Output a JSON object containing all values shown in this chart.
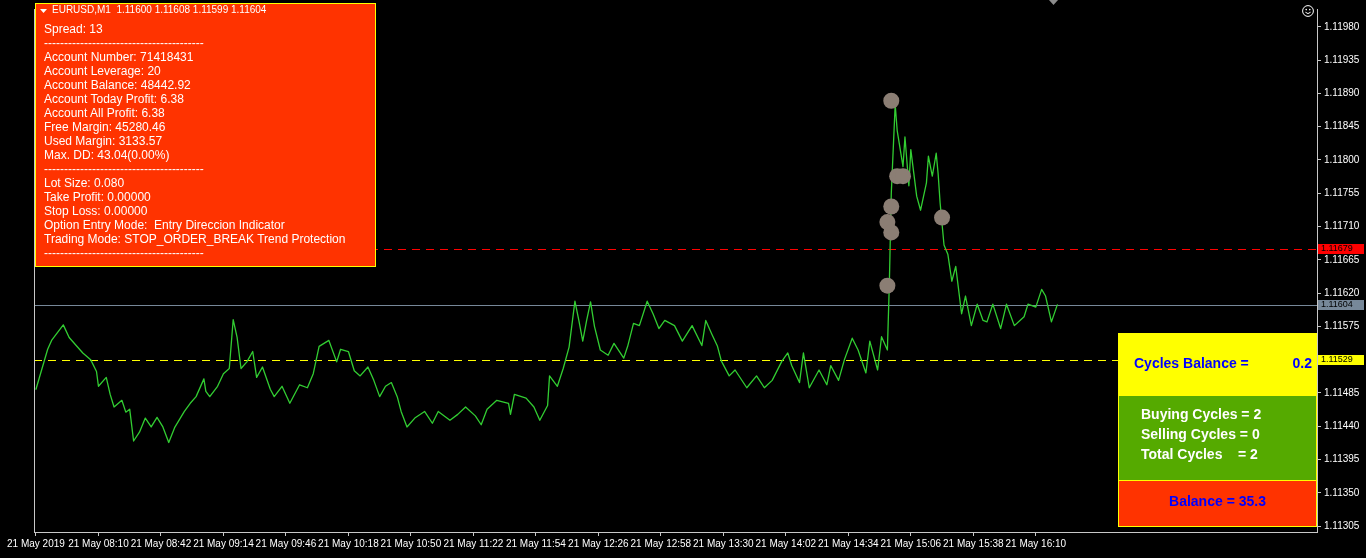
{
  "chart_data": {
    "type": "line",
    "title": "EURUSD,M1  1.11600 1.11608 1.11599 1.11604",
    "marker": "none",
    "x": [
      "2019-05-21T07:38",
      "2019-05-21T07:44",
      "2019-05-21T07:46",
      "2019-05-21T07:52",
      "2019-05-21T07:55",
      "2019-05-21T08:02",
      "2019-05-21T08:06",
      "2019-05-21T08:09",
      "2019-05-21T08:10",
      "2019-05-21T08:14",
      "2019-05-21T08:16",
      "2019-05-21T08:18",
      "2019-05-21T08:22",
      "2019-05-21T08:24",
      "2019-05-21T08:26",
      "2019-05-21T08:28",
      "2019-05-21T08:31",
      "2019-05-21T08:34",
      "2019-05-21T08:37",
      "2019-05-21T08:40",
      "2019-05-21T08:43",
      "2019-05-21T08:46",
      "2019-05-21T08:49",
      "2019-05-21T08:54",
      "2019-05-21T08:57",
      "2019-05-21T09:00",
      "2019-05-21T09:04",
      "2019-05-21T09:05",
      "2019-05-21T09:07",
      "2019-05-21T09:11",
      "2019-05-21T09:14",
      "2019-05-21T09:17",
      "2019-05-21T09:19",
      "2019-05-21T09:21",
      "2019-05-21T09:23",
      "2019-05-21T09:26",
      "2019-05-21T09:29",
      "2019-05-21T09:31",
      "2019-05-21T09:34",
      "2019-05-21T09:38",
      "2019-05-21T09:40",
      "2019-05-21T09:44",
      "2019-05-21T09:48",
      "2019-05-21T09:53",
      "2019-05-21T09:57",
      "2019-05-21T10:00",
      "2019-05-21T10:03",
      "2019-05-21T10:08",
      "2019-05-21T10:12",
      "2019-05-21T10:14",
      "2019-05-21T10:18",
      "2019-05-21T10:21",
      "2019-05-21T10:24",
      "2019-05-21T10:28",
      "2019-05-21T10:31",
      "2019-05-21T10:34",
      "2019-05-21T10:37",
      "2019-05-21T10:40",
      "2019-05-21T10:43",
      "2019-05-21T10:45",
      "2019-05-21T10:48",
      "2019-05-21T10:52",
      "2019-05-21T10:57",
      "2019-05-21T11:01",
      "2019-05-21T11:04",
      "2019-05-21T11:10",
      "2019-05-21T11:14",
      "2019-05-21T11:18",
      "2019-05-21T11:23",
      "2019-05-21T11:26",
      "2019-05-21T11:29",
      "2019-05-21T11:34",
      "2019-05-21T11:40",
      "2019-05-21T11:41",
      "2019-05-21T11:43",
      "2019-05-21T11:49",
      "2019-05-21T11:53",
      "2019-05-21T11:56",
      "2019-05-21T12:00",
      "2019-05-21T12:01",
      "2019-05-21T12:05",
      "2019-05-21T12:08",
      "2019-05-21T12:11",
      "2019-05-21T12:14",
      "2019-05-21T12:16",
      "2019-05-21T12:18",
      "2019-05-21T12:20",
      "2019-05-21T12:22",
      "2019-05-21T12:24",
      "2019-05-21T12:27",
      "2019-05-21T12:31",
      "2019-05-21T12:34",
      "2019-05-21T12:39",
      "2019-05-21T12:41",
      "2019-05-21T12:44",
      "2019-05-21T12:47",
      "2019-05-21T12:51",
      "2019-05-21T12:54",
      "2019-05-21T12:57",
      "2019-05-21T13:00",
      "2019-05-21T13:05",
      "2019-05-21T13:09",
      "2019-05-21T13:14",
      "2019-05-21T13:19",
      "2019-05-21T13:21",
      "2019-05-21T13:24",
      "2019-05-21T13:27",
      "2019-05-21T13:29",
      "2019-05-21T13:33",
      "2019-05-21T13:36",
      "2019-05-21T13:42",
      "2019-05-21T13:47",
      "2019-05-21T13:51",
      "2019-05-21T13:55",
      "2019-05-21T14:00",
      "2019-05-21T14:03",
      "2019-05-21T14:05",
      "2019-05-21T14:09",
      "2019-05-21T14:11",
      "2019-05-21T14:14",
      "2019-05-21T14:19",
      "2019-05-21T14:23",
      "2019-05-21T14:25",
      "2019-05-21T14:29",
      "2019-05-21T14:32",
      "2019-05-21T14:36",
      "2019-05-21T14:39",
      "2019-05-21T14:43",
      "2019-05-21T14:45",
      "2019-05-21T14:49",
      "2019-05-21T14:51",
      "2019-05-21T14:54",
      "2019-05-21T14:55",
      "2019-05-21T14:56",
      "2019-05-21T14:58",
      "2019-05-21T14:59",
      "2019-05-21T15:02",
      "2019-05-21T15:03",
      "2019-05-21T15:05",
      "2019-05-21T15:06",
      "2019-05-21T15:09",
      "2019-05-21T15:11",
      "2019-05-21T15:14",
      "2019-05-21T15:15",
      "2019-05-21T15:17",
      "2019-05-21T15:19",
      "2019-05-21T15:20",
      "2019-05-21T15:21",
      "2019-05-21T15:23",
      "2019-05-21T15:25",
      "2019-05-21T15:27",
      "2019-05-21T15:29",
      "2019-05-21T15:32",
      "2019-05-21T15:34",
      "2019-05-21T15:37",
      "2019-05-21T15:40",
      "2019-05-21T15:43",
      "2019-05-21T15:45",
      "2019-05-21T15:48",
      "2019-05-21T15:52",
      "2019-05-21T15:55",
      "2019-05-21T15:59",
      "2019-05-21T16:04",
      "2019-05-21T16:06",
      "2019-05-21T16:10",
      "2019-05-21T16:13",
      "2019-05-21T16:15",
      "2019-05-21T16:18",
      "2019-05-21T16:21"
    ],
    "series": [
      {
        "color": "#32cd32",
        "values": [
          1.1149,
          1.11544,
          1.11556,
          1.11577,
          1.1156,
          1.11539,
          1.1153,
          1.11514,
          1.11494,
          1.11506,
          1.11483,
          1.11466,
          1.11475,
          1.11459,
          1.11463,
          1.1142,
          1.11432,
          1.11451,
          1.11439,
          1.11452,
          1.11439,
          1.11418,
          1.11438,
          1.1146,
          1.11471,
          1.1148,
          1.11504,
          1.11487,
          1.1148,
          1.11494,
          1.11511,
          1.11518,
          1.11584,
          1.1156,
          1.11518,
          1.11527,
          1.11541,
          1.11506,
          1.1152,
          1.1149,
          1.1148,
          1.11494,
          1.11471,
          1.11496,
          1.11492,
          1.11511,
          1.11548,
          1.11556,
          1.11527,
          1.11544,
          1.11541,
          1.11515,
          1.11508,
          1.1152,
          1.11502,
          1.1148,
          1.11494,
          1.11499,
          1.1148,
          1.1146,
          1.11439,
          1.11451,
          1.1146,
          1.11444,
          1.1146,
          1.11448,
          1.11456,
          1.11466,
          1.11454,
          1.11442,
          1.11463,
          1.11475,
          1.11471,
          1.11456,
          1.11483,
          1.11478,
          1.11466,
          1.11448,
          1.11468,
          1.11508,
          1.11494,
          1.11518,
          1.11547,
          1.11609,
          1.11583,
          1.11555,
          1.11583,
          1.11608,
          1.11575,
          1.11543,
          1.11536,
          1.11552,
          1.11532,
          1.11548,
          1.11579,
          1.11576,
          1.11609,
          1.11592,
          1.11572,
          1.11583,
          1.11576,
          1.11555,
          1.11576,
          1.11549,
          1.11583,
          1.11565,
          1.11548,
          1.11528,
          1.11508,
          1.11516,
          1.11492,
          1.11508,
          1.11492,
          1.11502,
          1.11528,
          1.11539,
          1.11522,
          1.11499,
          1.11539,
          1.11492,
          1.11516,
          1.11496,
          1.11522,
          1.11502,
          1.1153,
          1.11559,
          1.11543,
          1.11512,
          1.11555,
          1.11516,
          1.11561,
          1.11543,
          1.11632,
          1.11755,
          1.11875,
          1.1184,
          1.11791,
          1.11831,
          1.11765,
          1.11814,
          1.11751,
          1.11732,
          1.11769,
          1.11805,
          1.11778,
          1.11809,
          1.11781,
          1.11742,
          1.11685,
          1.11672,
          1.11636,
          1.11656,
          1.11592,
          1.11616,
          1.11576,
          1.11605,
          1.11583,
          1.11581,
          1.11605,
          1.11572,
          1.11605,
          1.11576,
          1.11588,
          1.11605,
          1.11601,
          1.11625,
          1.11616,
          1.11581,
          1.11604
        ]
      },
      {
        "type": "scatter",
        "marker": "circle",
        "color": "#8b7e74",
        "x": [
          "2019-05-21T14:54",
          "2019-05-21T14:54",
          "2019-05-21T14:56",
          "2019-05-21T14:56",
          "2019-05-21T14:56",
          "2019-05-21T14:59",
          "2019-05-21T15:02",
          "2019-05-21T15:22"
        ],
        "values": [
          1.1163,
          1.11716,
          1.11702,
          1.11737,
          1.1188,
          1.11778,
          1.11778,
          1.11722
        ]
      }
    ],
    "xlim": [
      "2019-05-21T07:37",
      "2019-05-21T18:34"
    ],
    "xticks": [
      {
        "value": "2019-05-21T07:38",
        "label": "21 May 2019"
      },
      {
        "value": "2019-05-21T08:10",
        "label": "21 May 08:10"
      },
      {
        "value": "2019-05-21T08:42",
        "label": "21 May 08:42"
      },
      {
        "value": "2019-05-21T09:14",
        "label": "21 May 09:14"
      },
      {
        "value": "2019-05-21T09:46",
        "label": "21 May 09:46"
      },
      {
        "value": "2019-05-21T10:18",
        "label": "21 May 10:18"
      },
      {
        "value": "2019-05-21T10:50",
        "label": "21 May 10:50"
      },
      {
        "value": "2019-05-21T11:22",
        "label": "21 May 11:22"
      },
      {
        "value": "2019-05-21T11:54",
        "label": "21 May 11:54"
      },
      {
        "value": "2019-05-21T12:26",
        "label": "21 May 12:26"
      },
      {
        "value": "2019-05-21T12:58",
        "label": "21 May 12:58"
      },
      {
        "value": "2019-05-21T13:30",
        "label": "21 May 13:30"
      },
      {
        "value": "2019-05-21T14:02",
        "label": "21 May 14:02"
      },
      {
        "value": "2019-05-21T14:34",
        "label": "21 May 14:34"
      },
      {
        "value": "2019-05-21T15:06",
        "label": "21 May 15:06"
      },
      {
        "value": "2019-05-21T15:38",
        "label": "21 May 15:38"
      },
      {
        "value": "2019-05-21T16:10",
        "label": "21 May 16:10"
      }
    ],
    "ylim": [
      1.11297,
      1.12004
    ],
    "yticks": [
      1.11305,
      {
        "value": 1.1135,
        "label": "1.11350"
      },
      1.11395,
      {
        "value": 1.1144,
        "label": "1.11440"
      },
      1.11485,
      {
        "value": 1.1153,
        "label": null
      },
      1.11575,
      {
        "value": 1.1162,
        "label": "1.11620"
      },
      1.11665,
      {
        "value": 1.1171,
        "label": "1.11710"
      },
      1.11755,
      {
        "value": 1.118,
        "label": "1.11800"
      },
      1.11845,
      {
        "value": 1.1189,
        "label": "1.11890"
      },
      1.11935,
      {
        "value": 1.1198,
        "label": "1.11980"
      }
    ],
    "ref_lines": [
      {
        "axis": "y",
        "value": 1.11679,
        "label": "1.11679",
        "color": "#ff0000",
        "line_style": "dashed"
      },
      {
        "axis": "y",
        "value": 1.11604,
        "label": "1.11604",
        "color": "#778899",
        "line_style": "solid"
      },
      {
        "axis": "y",
        "value": 1.11529,
        "label": "1.11529",
        "color": "#ffff00",
        "line_style": "dashed"
      }
    ],
    "annotations": [
      "Spread: 13",
      "----------------------------------------",
      "Account Number: 71418431",
      "Account Leverage: 20",
      "Account Balance: 48442.92",
      "Account Today Profit: 6.38",
      "Account All Profit: 6.38",
      "Free Margin: 45280.46",
      "Used Margin: 3133.57",
      "Max. DD: 43.04(0.00%)",
      "----------------------------------------",
      "Lot Size: 0.080",
      "Take Profit: 0.00000",
      "Stop Loss: 0.00000",
      "Option Entry Mode:  Entry Direccion Indicator",
      "Trading Mode: STOP_ORDER_BREAK Trend Protection",
      "----------------------------------------",
      "Cycles Balance =",
      "0.2",
      "Buying Cycles = 2",
      "Selling Cycles = 0",
      "Total Cycles    = 2",
      "Balance = 35.3"
    ]
  }
}
